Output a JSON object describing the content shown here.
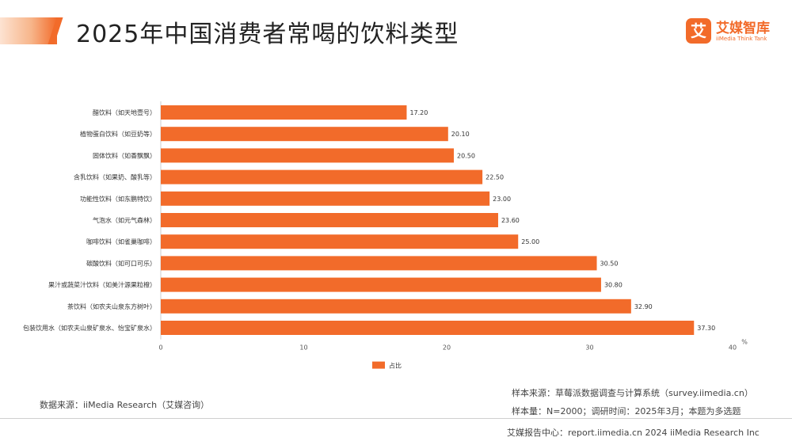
{
  "page": {
    "title": "2025年中国消费者常喝的饮料类型"
  },
  "logo": {
    "badge": "艾",
    "name": "艾媒智库",
    "subtitle": "iiMedia Think Tank"
  },
  "chart_data": {
    "type": "bar",
    "orientation": "horizontal",
    "categories": [
      "醋饮料（如天地壹号）",
      "植物蛋白饮料（如豆奶等）",
      "固体饮料（如香飘飘）",
      "含乳饮料（如果奶、酸乳等）",
      "功能性饮料（如东鹏特饮）",
      "气泡水（如元气森林）",
      "咖啡饮料（如雀巢咖啡）",
      "碳酸饮料（如可口可乐）",
      "果汁或蔬菜汁饮料（如美汁源果粒橙）",
      "茶饮料（如农夫山泉东方树叶）",
      "包装饮用水（如农夫山泉矿泉水、怡宝矿泉水）"
    ],
    "values": [
      17.2,
      20.1,
      20.5,
      22.5,
      23.0,
      23.6,
      25.0,
      30.5,
      30.8,
      32.9,
      37.3
    ],
    "value_labels": [
      "17.20",
      "20.10",
      "20.50",
      "22.50",
      "23.00",
      "23.60",
      "25.00",
      "30.50",
      "30.80",
      "32.90",
      "37.30"
    ],
    "series_name": "占比",
    "x_ticks": [
      "0",
      "10",
      "20",
      "30",
      "40"
    ],
    "x_tick_values": [
      0,
      10,
      20,
      30,
      40
    ],
    "xlim": [
      0,
      40
    ],
    "unit": "%",
    "legend_position": "bottom-center",
    "bar_color": "#f26b2a",
    "grid": false
  },
  "sources": {
    "data_source": "数据来源：iiMedia Research（艾媒咨询）",
    "sample_source": "样本来源：草莓派数据调查与计算系统（survey.iimedia.cn）",
    "sample_info": "样本量：N=2000；调研时间：2025年3月；本题为多选题"
  },
  "footer": {
    "text": "艾媒报告中心：report.iimedia.cn   2024 iiMedia Research Inc"
  }
}
